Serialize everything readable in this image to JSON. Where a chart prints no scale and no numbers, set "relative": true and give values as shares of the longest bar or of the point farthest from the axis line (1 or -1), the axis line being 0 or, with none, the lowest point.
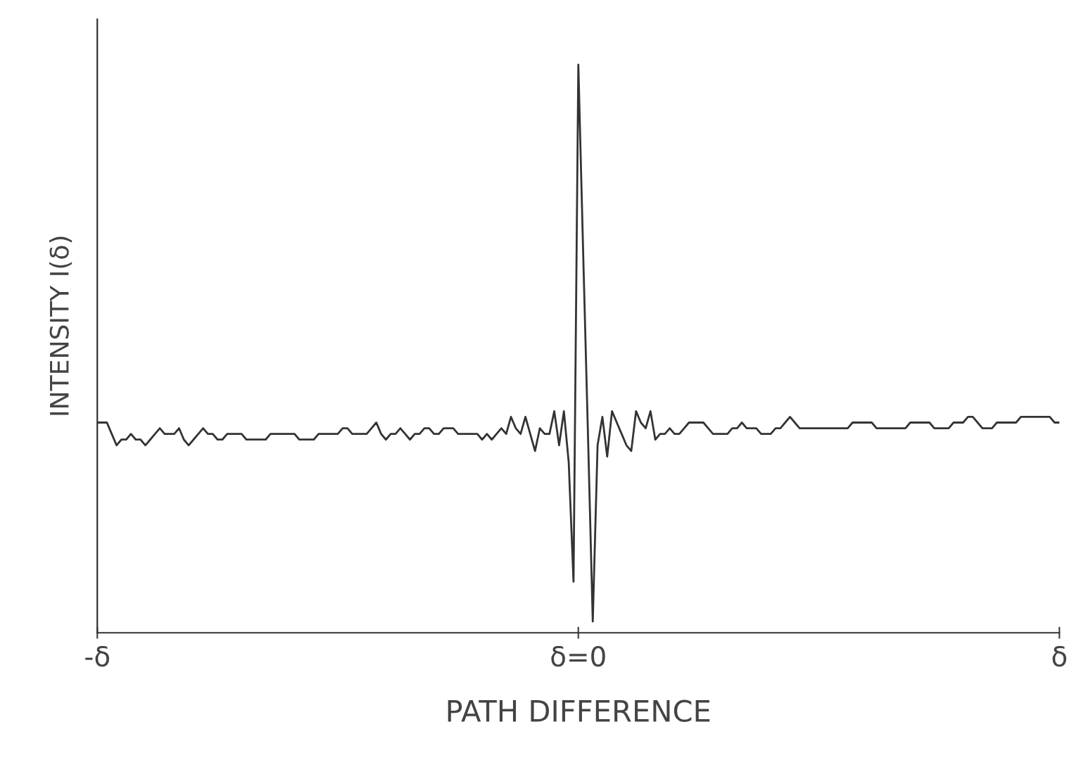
{
  "chart_data": {
    "type": "line",
    "relative": true,
    "xlabel": "PATH DIFFERENCE",
    "ylabel": "INTENSITY I(δ)",
    "categories": [
      "-δ",
      null,
      null,
      null,
      null,
      null,
      null,
      null,
      null,
      null,
      null,
      null,
      null,
      null,
      null,
      null,
      null,
      null,
      null,
      null,
      null,
      null,
      null,
      null,
      null,
      null,
      null,
      null,
      null,
      null,
      null,
      null,
      null,
      null,
      null,
      null,
      null,
      null,
      null,
      null,
      null,
      null,
      null,
      null,
      null,
      null,
      null,
      null,
      null,
      null,
      null,
      null,
      null,
      null,
      null,
      null,
      null,
      null,
      null,
      null,
      null,
      null,
      null,
      null,
      null,
      null,
      null,
      null,
      null,
      null,
      null,
      null,
      null,
      null,
      null,
      null,
      null,
      null,
      null,
      null,
      null,
      null,
      null,
      null,
      null,
      null,
      null,
      null,
      null,
      null,
      null,
      null,
      null,
      null,
      null,
      null,
      null,
      null,
      null,
      null,
      "δ=0",
      null,
      null,
      null,
      null,
      null,
      null,
      null,
      null,
      null,
      null,
      null,
      null,
      null,
      null,
      null,
      null,
      null,
      null,
      null,
      null,
      null,
      null,
      null,
      null,
      null,
      null,
      null,
      null,
      null,
      null,
      null,
      null,
      null,
      null,
      null,
      null,
      null,
      null,
      null,
      null,
      null,
      null,
      null,
      null,
      null,
      null,
      null,
      null,
      null,
      null,
      null,
      null,
      null,
      null,
      null,
      null,
      null,
      null,
      null,
      null,
      null,
      null,
      null,
      null,
      null,
      null,
      null,
      null,
      null,
      null,
      null,
      null,
      null,
      null,
      null,
      null,
      null,
      null,
      null,
      null,
      null,
      null,
      null,
      null,
      null,
      null,
      null,
      null,
      null,
      null,
      null,
      null,
      null,
      null,
      null,
      null,
      null,
      null,
      null,
      "δ"
    ],
    "grid": false,
    "legend": false,
    "marker": "none",
    "line_style": "solid",
    "series": [
      {
        "color": "#333333",
        "values": [
          0.37,
          0.37,
          0.37,
          0.35,
          0.33,
          0.34,
          0.34,
          0.35,
          0.34,
          0.34,
          0.33,
          0.34,
          0.35,
          0.36,
          0.35,
          0.35,
          0.35,
          0.36,
          0.34,
          0.33,
          0.34,
          0.35,
          0.36,
          0.35,
          0.35,
          0.34,
          0.34,
          0.35,
          0.35,
          0.35,
          0.35,
          0.34,
          0.34,
          0.34,
          0.34,
          0.34,
          0.35,
          0.35,
          0.35,
          0.35,
          0.35,
          0.35,
          0.34,
          0.34,
          0.34,
          0.34,
          0.35,
          0.35,
          0.35,
          0.35,
          0.35,
          0.36,
          0.36,
          0.35,
          0.35,
          0.35,
          0.35,
          0.36,
          0.37,
          0.35,
          0.34,
          0.35,
          0.35,
          0.36,
          0.35,
          0.34,
          0.35,
          0.35,
          0.36,
          0.36,
          0.35,
          0.35,
          0.36,
          0.36,
          0.36,
          0.35,
          0.35,
          0.35,
          0.35,
          0.35,
          0.34,
          0.35,
          0.34,
          0.35,
          0.36,
          0.35,
          0.38,
          0.36,
          0.35,
          0.38,
          0.35,
          0.32,
          0.36,
          0.35,
          0.35,
          0.39,
          0.33,
          0.39,
          0.3,
          0.09,
          1.0,
          0.67,
          0.35,
          0.02,
          0.33,
          0.38,
          0.31,
          0.39,
          0.37,
          0.35,
          0.33,
          0.32,
          0.39,
          0.37,
          0.36,
          0.39,
          0.34,
          0.35,
          0.35,
          0.36,
          0.35,
          0.35,
          0.36,
          0.37,
          0.37,
          0.37,
          0.37,
          0.36,
          0.35,
          0.35,
          0.35,
          0.35,
          0.36,
          0.36,
          0.37,
          0.36,
          0.36,
          0.36,
          0.35,
          0.35,
          0.35,
          0.36,
          0.36,
          0.37,
          0.38,
          0.37,
          0.36,
          0.36,
          0.36,
          0.36,
          0.36,
          0.36,
          0.36,
          0.36,
          0.36,
          0.36,
          0.36,
          0.37,
          0.37,
          0.37,
          0.37,
          0.37,
          0.36,
          0.36,
          0.36,
          0.36,
          0.36,
          0.36,
          0.36,
          0.37,
          0.37,
          0.37,
          0.37,
          0.37,
          0.36,
          0.36,
          0.36,
          0.36,
          0.37,
          0.37,
          0.37,
          0.38,
          0.38,
          0.37,
          0.36,
          0.36,
          0.36,
          0.37,
          0.37,
          0.37,
          0.37,
          0.37,
          0.38,
          0.38,
          0.38,
          0.38,
          0.38,
          0.38,
          0.38,
          0.37,
          0.37
        ]
      }
    ]
  }
}
